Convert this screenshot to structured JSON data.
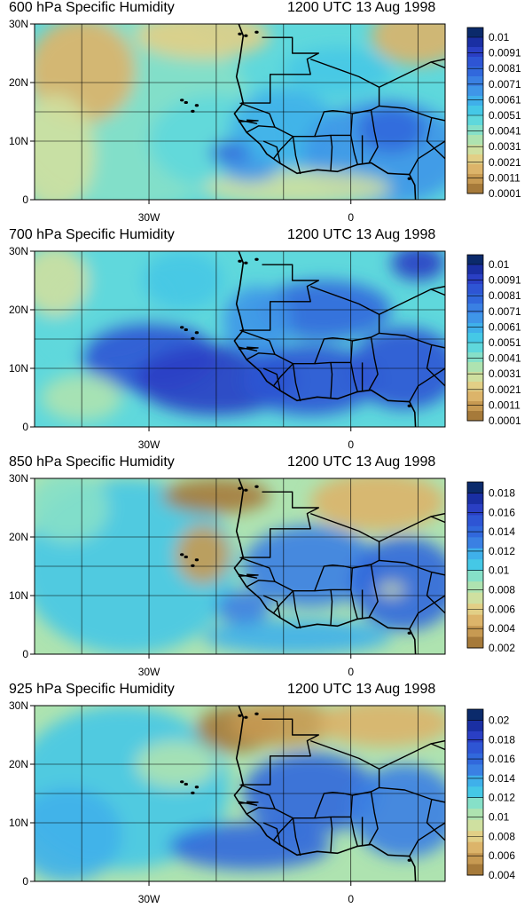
{
  "figure": {
    "panels": [
      {
        "title": "600 hPa Specific Humidity",
        "time": "1200 UTC 13 Aug 1998",
        "lat_ticks": [
          "30N",
          "20N",
          "10N",
          "0"
        ],
        "lon_ticks": [
          "30W",
          "0"
        ],
        "colorbar": {
          "labels": [
            "0.01",
            "0.0091",
            "0.0081",
            "0.0071",
            "0.0061",
            "0.0051",
            "0.0041",
            "0.0031",
            "0.0021",
            "0.0011",
            "0.0001"
          ],
          "colors": [
            "#0b2a6b",
            "#1a2fa3",
            "#2a3fc4",
            "#2e55d4",
            "#3168dc",
            "#3a80e3",
            "#3f96e8",
            "#3fb0ea",
            "#45c8e6",
            "#5fd8dc",
            "#86e0c8",
            "#aee3b0",
            "#cfe0a0",
            "#e2cf86",
            "#dcb46a",
            "#c79a52",
            "#a67a3a"
          ]
        }
      },
      {
        "title": "700 hPa Specific Humidity",
        "time": "1200 UTC 13 Aug 1998",
        "lat_ticks": [
          "30N",
          "20N",
          "10N",
          "0"
        ],
        "lon_ticks": [
          "30W",
          "0"
        ],
        "colorbar": {
          "labels": [
            "0.01",
            "0.0091",
            "0.0081",
            "0.0071",
            "0.0061",
            "0.0051",
            "0.0041",
            "0.0031",
            "0.0021",
            "0.0011",
            "0.0001"
          ],
          "colors": [
            "#0b2a6b",
            "#1a2fa3",
            "#2a3fc4",
            "#2e55d4",
            "#3168dc",
            "#3a80e3",
            "#3f96e8",
            "#3fb0ea",
            "#45c8e6",
            "#5fd8dc",
            "#86e0c8",
            "#aee3b0",
            "#cfe0a0",
            "#e2cf86",
            "#dcb46a",
            "#c79a52",
            "#a67a3a"
          ]
        }
      },
      {
        "title": "850 hPa Specific Humidity",
        "time": "1200 UTC 13 Aug 1998",
        "lat_ticks": [
          "30N",
          "20N",
          "10N",
          "0"
        ],
        "lon_ticks": [
          "30W",
          "0"
        ],
        "colorbar": {
          "labels": [
            "0.018",
            "0.016",
            "0.014",
            "0.012",
            "0.01",
            "0.008",
            "0.006",
            "0.004",
            "0.002"
          ],
          "colors": [
            "#0b2a6b",
            "#1a2fa3",
            "#2a3fc4",
            "#2e55d4",
            "#3168dc",
            "#3a80e3",
            "#3fb0ea",
            "#45c8e6",
            "#86e0c8",
            "#aee3b0",
            "#cfe0a0",
            "#e2cf86",
            "#dcb46a",
            "#c79a52",
            "#a67a3a"
          ]
        }
      },
      {
        "title": "925 hPa Specific Humidity",
        "time": "1200 UTC 13 Aug 1998",
        "lat_ticks": [
          "30N",
          "20N",
          "10N",
          "0"
        ],
        "lon_ticks": [
          "30W",
          "0"
        ],
        "colorbar": {
          "labels": [
            "0.02",
            "0.018",
            "0.016",
            "0.014",
            "0.012",
            "0.01",
            "0.008",
            "0.006",
            "0.004"
          ],
          "colors": [
            "#0b2a6b",
            "#1a2fa3",
            "#2a3fc4",
            "#2e55d4",
            "#3168dc",
            "#3a80e3",
            "#3fb0ea",
            "#45c8e6",
            "#86e0c8",
            "#aee3b0",
            "#cfe0a0",
            "#e2cf86",
            "#dcb46a",
            "#c79a52",
            "#a67a3a"
          ]
        }
      }
    ],
    "ocean_color": "#4fc4e8",
    "dry_color": "#d9b46c",
    "moist_color": "#2b4fcf"
  }
}
